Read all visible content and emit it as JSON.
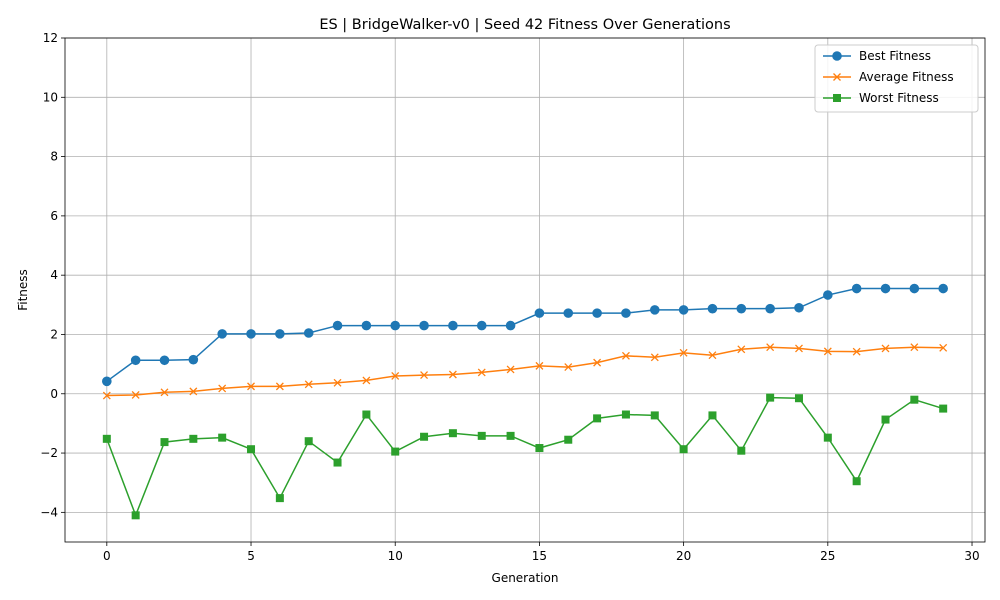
{
  "chart_data": {
    "type": "line",
    "title": "ES | BridgeWalker-v0 | Seed 42 Fitness Over Generations",
    "xlabel": "Generation",
    "ylabel": "Fitness",
    "xlim": [
      -1.45,
      30.45
    ],
    "ylim": [
      -5,
      12
    ],
    "xticks": [
      0,
      5,
      10,
      15,
      20,
      25,
      30
    ],
    "yticks": [
      -4,
      -2,
      0,
      2,
      4,
      6,
      8,
      10,
      12
    ],
    "xtick_labels": [
      "0",
      "5",
      "10",
      "15",
      "20",
      "25",
      "30"
    ],
    "ytick_labels": [
      "−4",
      "−2",
      "0",
      "2",
      "4",
      "6",
      "8",
      "10",
      "12"
    ],
    "grid": true,
    "legend": "top-right",
    "x": [
      0,
      1,
      2,
      3,
      4,
      5,
      6,
      7,
      8,
      9,
      10,
      11,
      12,
      13,
      14,
      15,
      16,
      17,
      18,
      19,
      20,
      21,
      22,
      23,
      24,
      25,
      26,
      27,
      28,
      29
    ],
    "series": [
      {
        "name": "Best Fitness",
        "color": "#1f77b4",
        "marker": "circle",
        "values": [
          0.42,
          1.13,
          1.13,
          1.15,
          2.02,
          2.02,
          2.02,
          2.05,
          2.3,
          2.3,
          2.3,
          2.3,
          2.3,
          2.3,
          2.3,
          2.72,
          2.72,
          2.72,
          2.72,
          2.83,
          2.83,
          2.87,
          2.87,
          2.87,
          2.9,
          3.33,
          3.55,
          3.55,
          3.55,
          3.55
        ]
      },
      {
        "name": "Average Fitness",
        "color": "#ff7f0e",
        "marker": "x",
        "values": [
          -0.06,
          -0.04,
          0.05,
          0.08,
          0.18,
          0.25,
          0.25,
          0.32,
          0.37,
          0.45,
          0.6,
          0.63,
          0.65,
          0.72,
          0.82,
          0.94,
          0.9,
          1.05,
          1.28,
          1.23,
          1.38,
          1.3,
          1.5,
          1.57,
          1.53,
          1.43,
          1.42,
          1.53,
          1.57,
          1.55
        ]
      },
      {
        "name": "Worst Fitness",
        "color": "#2ca02c",
        "marker": "square",
        "values": [
          -1.52,
          -4.1,
          -1.63,
          -1.52,
          -1.48,
          -1.87,
          -3.52,
          -1.6,
          -2.32,
          -0.7,
          -1.95,
          -1.45,
          -1.33,
          -1.42,
          -1.42,
          -1.83,
          -1.55,
          -0.83,
          -0.7,
          -0.73,
          -1.87,
          -0.73,
          -1.92,
          -0.13,
          -0.15,
          -1.48,
          -2.95,
          -0.87,
          -0.2,
          -0.5
        ]
      }
    ]
  }
}
